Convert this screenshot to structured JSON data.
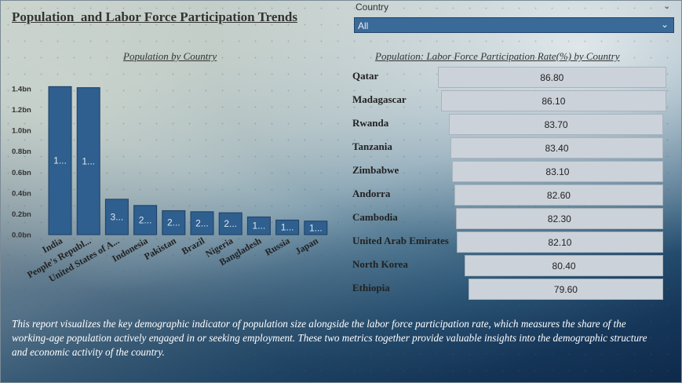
{
  "report": {
    "title": "Population  and Labor Force Participation Trends",
    "description": "This report visualizes the key demographic indicator of population size alongside the labor force participation rate, which measures the share of the working-age population actively engaged in or seeking employment. These two metrics together provide valuable insights into the demographic structure and economic activity of the country."
  },
  "slicer": {
    "label": "Country",
    "value": "All"
  },
  "chart_data": [
    {
      "type": "bar",
      "title": "Population by Country",
      "categories": [
        "India",
        "People's Republ...",
        "United States of A...",
        "Indonesia",
        "Pakistan",
        "Brazil",
        "Nigeria",
        "Bangladesh",
        "Russia",
        "Japan"
      ],
      "values": [
        1.42,
        1.41,
        0.34,
        0.28,
        0.23,
        0.22,
        0.21,
        0.17,
        0.14,
        0.13
      ],
      "data_labels": [
        "1...",
        "1...",
        "3...",
        "2...",
        "2...",
        "2...",
        "2...",
        "1...",
        "1...",
        "1..."
      ],
      "ytick_labels": [
        "0.0bn",
        "0.2bn",
        "0.4bn",
        "0.6bn",
        "0.8bn",
        "1.0bn",
        "1.2bn",
        "1.4bn"
      ],
      "ylim": [
        0,
        1.4
      ],
      "units": "bn",
      "color": "#2e5f8f"
    },
    {
      "type": "bar",
      "title": "Population: Labor Force Participation Rate(%) by Country",
      "categories": [
        "Qatar",
        "Madagascar",
        "Rwanda",
        "Tanzania",
        "Zimbabwe",
        "Andorra",
        "Cambodia",
        "United Arab Emirates",
        "North Korea",
        "Ethiopia"
      ],
      "values": [
        86.8,
        86.1,
        83.7,
        83.4,
        83.1,
        82.6,
        82.3,
        82.1,
        80.4,
        79.6
      ],
      "value_labels": [
        "86.80",
        "86.10",
        "83.70",
        "83.40",
        "83.10",
        "82.60",
        "82.30",
        "82.10",
        "80.40",
        "79.60"
      ],
      "color": "#ccd2d9"
    }
  ]
}
